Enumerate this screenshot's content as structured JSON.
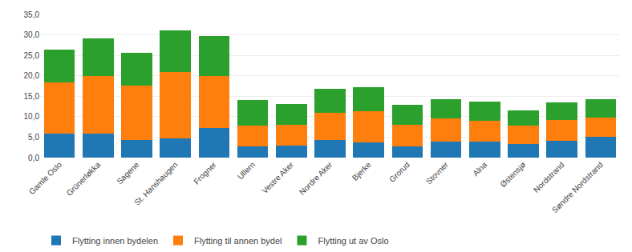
{
  "chart_data": {
    "type": "bar",
    "stacked": true,
    "categories": [
      "Gamle Oslo",
      "Grünerløkka",
      "Sagene",
      "St. Hanshaugen",
      "Frogner",
      "Ullern",
      "Vestre Aker",
      "Nordre Aker",
      "Bjerke",
      "Grorud",
      "Stovner",
      "Alna",
      "Østensjø",
      "Nordstrand",
      "Søndre Nordstrand"
    ],
    "series": [
      {
        "name": "Flytting innen bydelen",
        "values": [
          5.8,
          5.8,
          4.3,
          4.7,
          7.2,
          2.8,
          3.0,
          4.3,
          3.8,
          2.8,
          4.0,
          4.0,
          3.3,
          4.2,
          5.0
        ]
      },
      {
        "name": "Flytting til annen bydel",
        "values": [
          12.5,
          14.2,
          13.3,
          16.3,
          12.7,
          5.0,
          5.0,
          6.7,
          7.5,
          5.2,
          5.5,
          5.0,
          4.5,
          5.0,
          4.8
        ]
      },
      {
        "name": "Flytting ut av Oslo",
        "values": [
          8.0,
          9.2,
          8.0,
          10.0,
          9.8,
          6.2,
          5.1,
          5.8,
          6.0,
          5.0,
          4.7,
          4.7,
          3.8,
          4.3,
          4.5
        ]
      }
    ],
    "ylim": [
      0,
      35
    ],
    "yticks": [
      {
        "value": 0.0,
        "label": "0,0"
      },
      {
        "value": 5.0,
        "label": "5,0"
      },
      {
        "value": 10.0,
        "label": "10,0"
      },
      {
        "value": 15.0,
        "label": "15,0"
      },
      {
        "value": 20.0,
        "label": "20,0"
      },
      {
        "value": 25.0,
        "label": "25,0"
      },
      {
        "value": 30.0,
        "label": "30,0"
      },
      {
        "value": 35.0,
        "label": "35,0"
      }
    ],
    "grid": true,
    "legend": "bottom"
  }
}
